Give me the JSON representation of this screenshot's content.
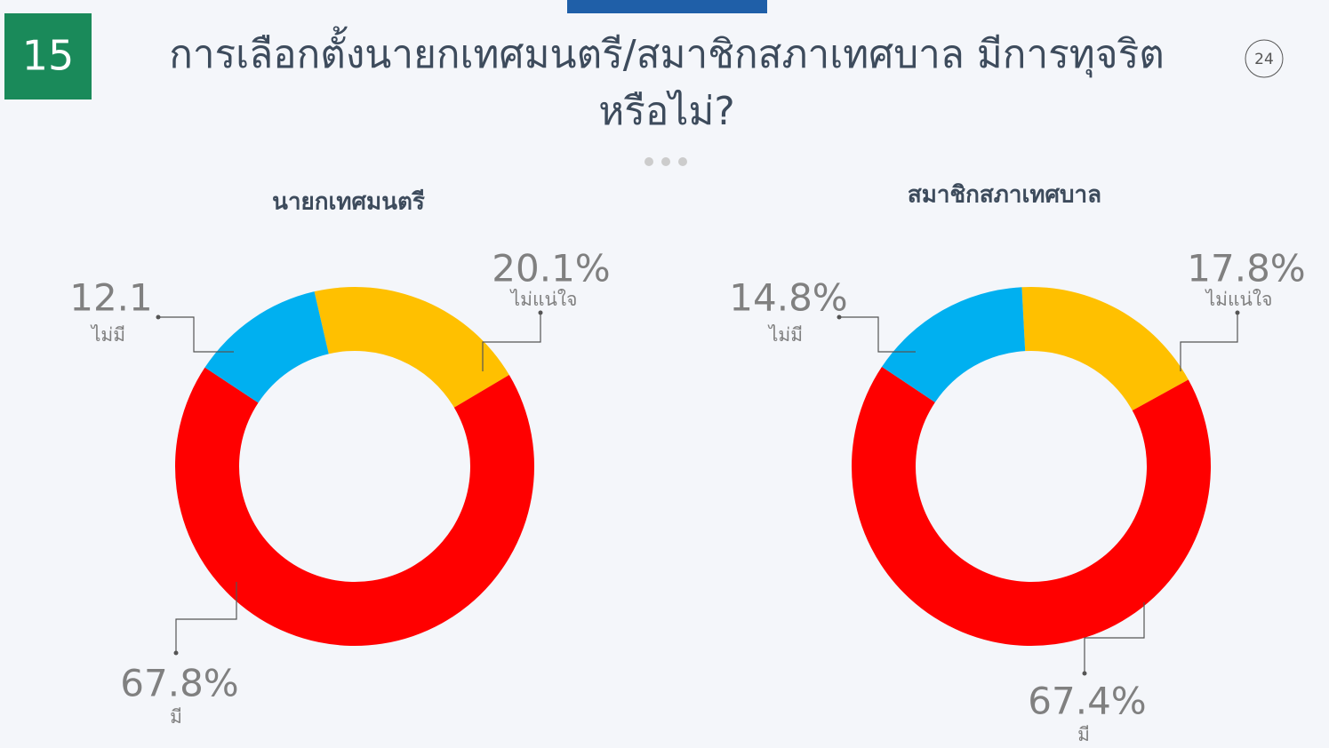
{
  "slide_number": "15",
  "page_number": "24",
  "title": "การเลือกตั้งนายกเทศมนตรี/สมาชิกสภาเทศบาล มีการทุจริตหรือไม่?",
  "chart_data": [
    {
      "type": "pie",
      "title": "นายกเทศมนตรี",
      "categories": [
        "ไม่แน่ใจ",
        "มี",
        "ไม่มี"
      ],
      "values": [
        20.1,
        67.8,
        12.1
      ],
      "value_labels": [
        "20.1%",
        "67.8%",
        "12.1"
      ],
      "colors": [
        "#ffc000",
        "#ff0000",
        "#00b0f0"
      ]
    },
    {
      "type": "pie",
      "title": "สมาชิกสภาเทศบาล",
      "categories": [
        "ไม่แน่ใจ",
        "มี",
        "ไม่มี"
      ],
      "values": [
        17.8,
        67.4,
        14.8
      ],
      "value_labels": [
        "17.8%",
        "67.4%",
        "14.8%"
      ],
      "colors": [
        "#ffc000",
        "#ff0000",
        "#00b0f0"
      ]
    }
  ]
}
